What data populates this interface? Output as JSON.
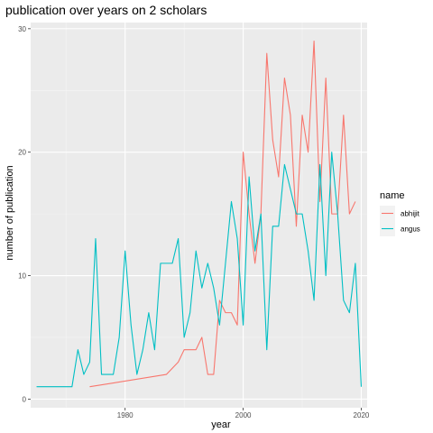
{
  "chart_data": {
    "type": "line",
    "title": "publication over years on 2 scholars",
    "xlabel": "year",
    "ylabel": "number of publication",
    "xlim": [
      1964,
      2021
    ],
    "ylim": [
      -0.7,
      30.5
    ],
    "x_ticks": [
      1980,
      2000,
      2020
    ],
    "y_ticks": [
      0,
      10,
      20,
      30
    ],
    "grid": true,
    "legend": {
      "title": "name",
      "placement": "right",
      "entries": [
        "abhijit",
        "angus"
      ]
    },
    "colors": {
      "abhijit": "#F8766D",
      "angus": "#00BFC4"
    },
    "series": [
      {
        "name": "abhijit",
        "x": [
          1974,
          1987,
          1989,
          1990,
          1991,
          1992,
          1993,
          1994,
          1995,
          1996,
          1997,
          1998,
          1999,
          2000,
          2001,
          2002,
          2003,
          2004,
          2005,
          2006,
          2007,
          2008,
          2009,
          2010,
          2011,
          2012,
          2013,
          2014,
          2015,
          2016,
          2017,
          2018,
          2019
        ],
        "values": [
          1,
          2,
          3,
          4,
          4,
          4,
          5,
          2,
          2,
          8,
          7,
          7,
          6,
          20,
          15,
          11,
          15,
          28,
          21,
          18,
          26,
          23,
          14,
          23,
          20,
          29,
          16,
          26,
          15,
          15,
          23,
          15,
          16
        ]
      },
      {
        "name": "angus",
        "x": [
          1965,
          1971,
          1972,
          1973,
          1974,
          1975,
          1976,
          1977,
          1978,
          1979,
          1980,
          1981,
          1982,
          1983,
          1984,
          1985,
          1986,
          1987,
          1988,
          1989,
          1990,
          1991,
          1992,
          1993,
          1994,
          1995,
          1996,
          1997,
          1998,
          1999,
          2000,
          2001,
          2002,
          2003,
          2004,
          2005,
          2006,
          2007,
          2008,
          2009,
          2010,
          2011,
          2012,
          2013,
          2014,
          2015,
          2016,
          2017,
          2018,
          2019,
          2020
        ],
        "values": [
          1,
          1,
          4,
          2,
          3,
          13,
          2,
          2,
          2,
          5,
          12,
          6,
          2,
          4,
          7,
          4,
          11,
          11,
          11,
          13,
          5,
          7,
          12,
          9,
          11,
          9,
          6,
          11,
          16,
          13,
          6,
          18,
          12,
          15,
          4,
          14,
          14,
          19,
          17,
          15,
          15,
          12,
          8,
          19,
          10,
          20,
          15,
          8,
          7,
          11,
          1
        ]
      }
    ]
  }
}
